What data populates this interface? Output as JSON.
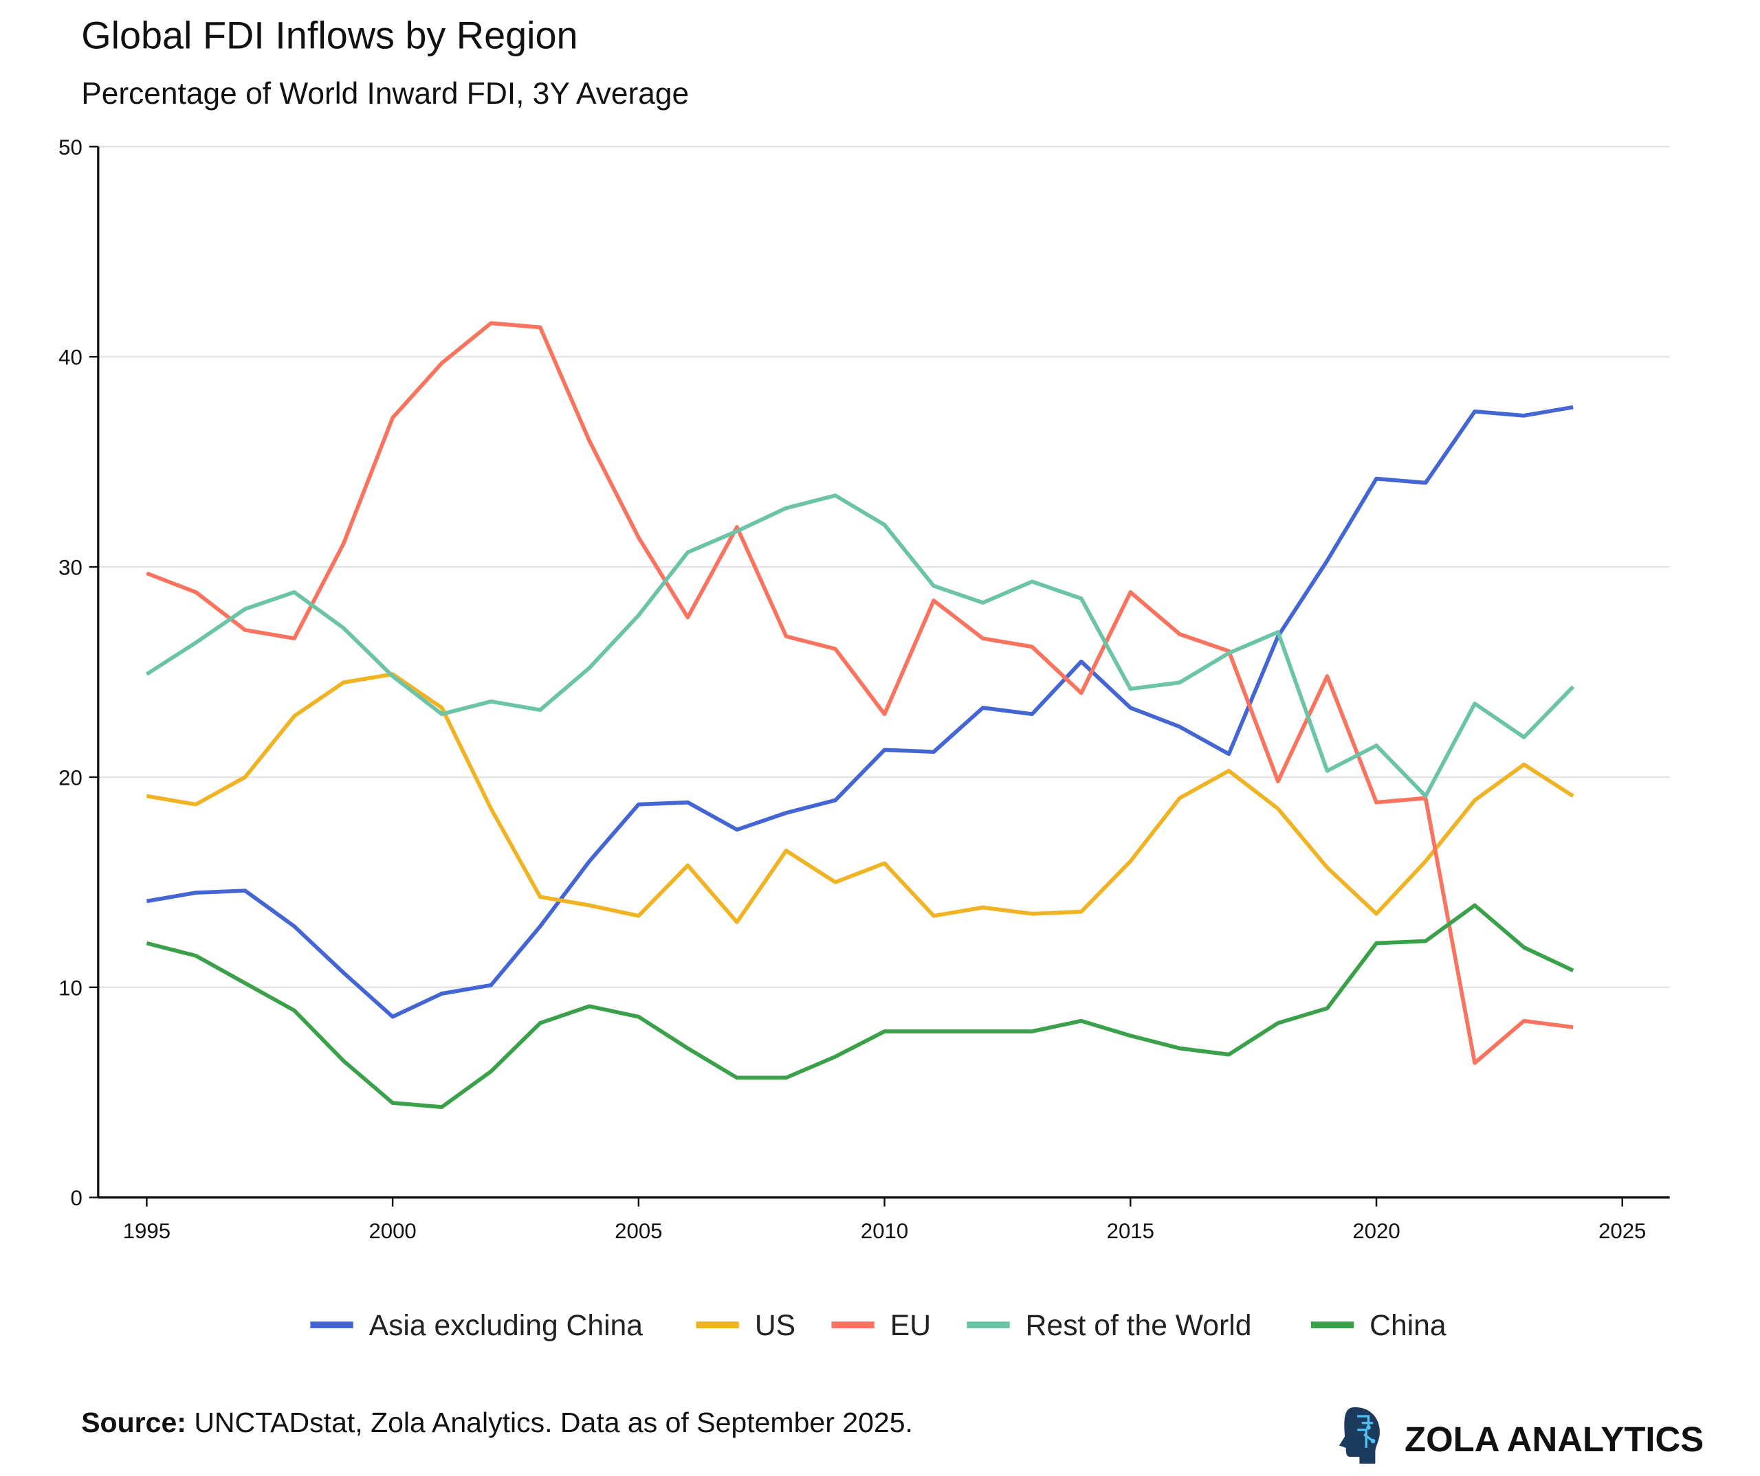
{
  "chart_data": {
    "type": "line",
    "title": "Global FDI Inflows by Region",
    "subtitle": "Percentage of World Inward FDI, 3Y Average",
    "xlabel": "",
    "ylabel": "",
    "xlim": [
      1994,
      2026
    ],
    "ylim": [
      0,
      50
    ],
    "xticks": [
      1995,
      2000,
      2005,
      2010,
      2015,
      2020,
      2025
    ],
    "yticks": [
      0,
      10,
      20,
      30,
      40,
      50
    ],
    "grid": "horizontal",
    "legend_position": "bottom",
    "x": [
      1995,
      1996,
      1997,
      1998,
      1999,
      2000,
      2001,
      2002,
      2003,
      2004,
      2005,
      2006,
      2007,
      2008,
      2009,
      2010,
      2011,
      2012,
      2013,
      2014,
      2015,
      2016,
      2017,
      2018,
      2019,
      2020,
      2021,
      2022,
      2023,
      2024
    ],
    "series": [
      {
        "name": "Asia excluding China",
        "color": "#4466d4",
        "values": [
          14.1,
          14.5,
          14.6,
          12.9,
          10.7,
          8.6,
          9.7,
          10.1,
          12.9,
          16.0,
          18.7,
          18.8,
          17.5,
          18.3,
          18.9,
          21.3,
          21.2,
          23.3,
          23.0,
          25.5,
          23.3,
          22.4,
          21.1,
          26.7,
          30.3,
          34.2,
          34.0,
          37.4,
          37.2,
          37.6
        ]
      },
      {
        "name": "US",
        "color": "#f0b323",
        "values": [
          19.1,
          18.7,
          20.0,
          22.9,
          24.5,
          24.9,
          23.3,
          18.5,
          14.3,
          13.9,
          13.4,
          15.8,
          13.1,
          16.5,
          15.0,
          15.9,
          13.4,
          13.8,
          13.5,
          13.6,
          16.0,
          19.0,
          20.3,
          18.5,
          15.7,
          13.5,
          16.0,
          18.9,
          20.6,
          19.1
        ]
      },
      {
        "name": "EU",
        "color": "#fa735f",
        "values": [
          29.7,
          28.8,
          27.0,
          26.6,
          31.1,
          37.1,
          39.7,
          41.6,
          41.4,
          36.0,
          31.4,
          27.6,
          31.9,
          26.7,
          26.1,
          23.0,
          28.4,
          26.6,
          26.2,
          24.0,
          28.8,
          26.8,
          26.0,
          19.8,
          24.8,
          18.8,
          19.0,
          6.4,
          8.4,
          8.1
        ]
      },
      {
        "name": "Rest of the World",
        "color": "#6cc4a8",
        "values": [
          24.9,
          26.4,
          28.0,
          28.8,
          27.1,
          24.8,
          23.0,
          23.6,
          23.2,
          25.2,
          27.7,
          30.7,
          31.7,
          32.8,
          33.4,
          32.0,
          29.1,
          28.3,
          29.3,
          28.5,
          24.2,
          24.5,
          25.9,
          26.9,
          20.3,
          21.5,
          19.1,
          23.5,
          21.9,
          24.3
        ]
      },
      {
        "name": "China",
        "color": "#3aa14a",
        "values": [
          12.1,
          11.5,
          10.2,
          8.9,
          6.5,
          4.5,
          4.3,
          6.0,
          8.3,
          9.1,
          8.6,
          7.1,
          5.7,
          5.7,
          6.7,
          7.9,
          7.9,
          7.9,
          7.9,
          8.4,
          7.7,
          7.1,
          6.8,
          8.3,
          9.0,
          12.1,
          12.2,
          13.9,
          11.9,
          10.8
        ]
      }
    ]
  },
  "footer": {
    "source_label": "Source:",
    "source_text": " UNCTADstat, Zola Analytics. Data as of September 2025.",
    "brand": "ZOLA ANALYTICS",
    "logo_icon": "head-circuit-icon"
  }
}
